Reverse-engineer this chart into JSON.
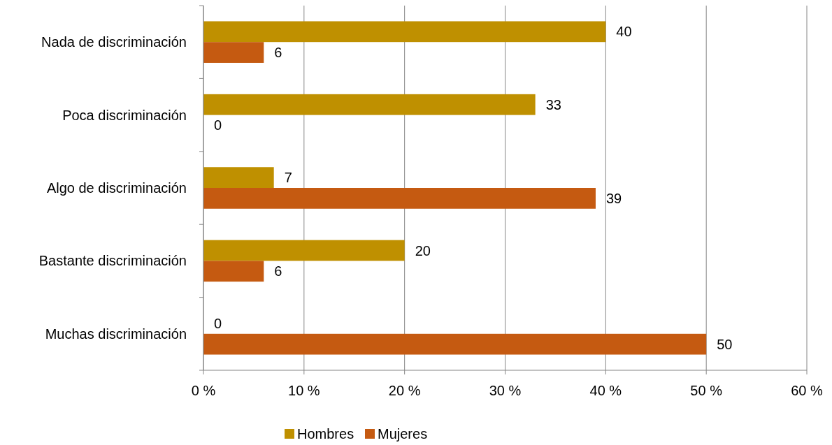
{
  "chart_data": {
    "type": "bar",
    "orientation": "horizontal",
    "categories": [
      "Nada de discriminación",
      "Poca discriminación",
      "Algo de discriminación",
      "Bastante discriminación",
      "Muchas discriminación"
    ],
    "series": [
      {
        "name": "Hombres",
        "color": "#bf9000",
        "values": [
          40,
          33,
          7,
          20,
          0
        ]
      },
      {
        "name": "Mujeres",
        "color": "#c55a11",
        "values": [
          6,
          0,
          39,
          6,
          50
        ]
      }
    ],
    "xlim": [
      0,
      60
    ],
    "xticks": [
      {
        "value": 0,
        "label": "0 %"
      },
      {
        "value": 10,
        "label": "10 %"
      },
      {
        "value": 20,
        "label": "20 %"
      },
      {
        "value": 30,
        "label": "30 %"
      },
      {
        "value": 40,
        "label": "40 %"
      },
      {
        "value": 50,
        "label": "50 %"
      },
      {
        "value": 60,
        "label": "60 %"
      }
    ],
    "grid": "x",
    "legend": "bottom",
    "data_labels": true
  }
}
